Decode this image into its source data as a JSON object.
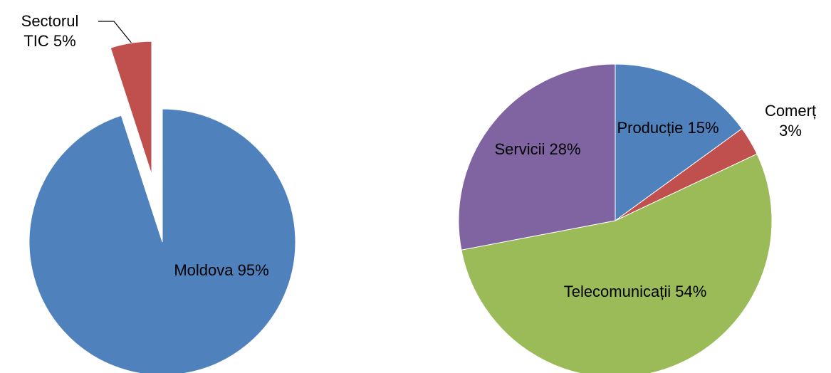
{
  "chart_data": [
    {
      "type": "pie",
      "categories": [
        "Moldova",
        "Sectorul TIC"
      ],
      "values": [
        95,
        5
      ],
      "value_labels": [
        "95%",
        "5%"
      ],
      "colors": [
        "#4f81bd",
        "#c0504d"
      ]
    },
    {
      "type": "pie",
      "categories": [
        "Producție",
        "Comerț",
        "Telecomunicații",
        "Servicii"
      ],
      "values": [
        15,
        3,
        54,
        28
      ],
      "value_labels": [
        "15%",
        "3%",
        "54%",
        "28%"
      ],
      "colors": [
        "#4f81bd",
        "#c0504d",
        "#9bbb59",
        "#8064a2"
      ]
    }
  ]
}
